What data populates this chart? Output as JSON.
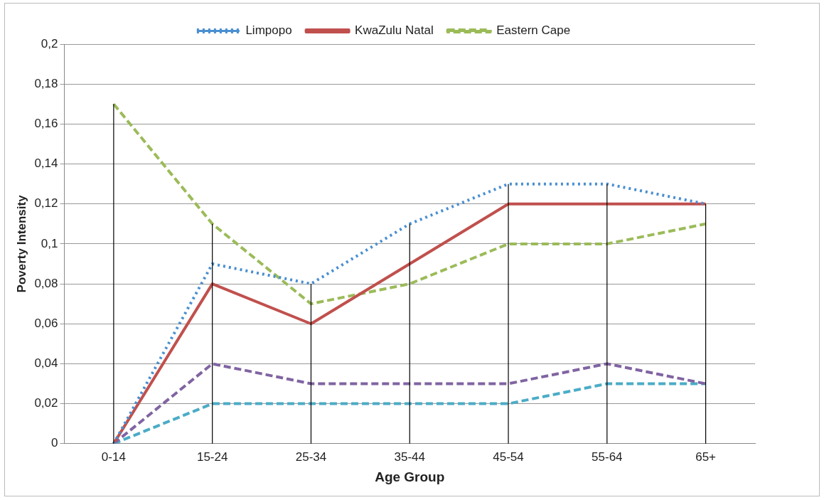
{
  "chart_data": {
    "type": "line",
    "xlabel": "Age Group",
    "ylabel": "Poverty Intensity",
    "categories": [
      "0-14",
      "15-24",
      "25-34",
      "35-44",
      "45-54",
      "55-64",
      "65+"
    ],
    "series": [
      {
        "name": "Limpopo",
        "color": "#4a8fd0",
        "line_style": "dotted",
        "values": [
          0,
          0.09,
          0.08,
          0.11,
          0.13,
          0.13,
          0.12
        ]
      },
      {
        "name": "KwaZulu Natal",
        "color": "#c0504d",
        "line_style": "solid",
        "values": [
          0,
          0.08,
          0.06,
          0.09,
          0.12,
          0.12,
          0.12
        ]
      },
      {
        "name": "Eastern Cape",
        "color": "#9bbb59",
        "line_style": "dashed",
        "values": [
          0.17,
          0.11,
          0.07,
          0.08,
          0.1,
          0.1,
          0.11
        ]
      },
      {
        "color": "#8064a2",
        "line_style": "dashed",
        "values": [
          0,
          0.04,
          0.03,
          0.03,
          0.03,
          0.04,
          0.03
        ]
      },
      {
        "color": "#4bacc6",
        "line_style": "dashed",
        "values": [
          0,
          0.02,
          0.02,
          0.02,
          0.02,
          0.03,
          0.03
        ],
        "errors": [
          [
            0,
            0.17
          ],
          [
            0,
            0.11
          ],
          [
            0,
            0.08
          ],
          [
            0,
            0.11
          ],
          [
            0,
            0.13
          ],
          [
            0,
            0.13
          ],
          [
            0,
            0.12
          ]
        ]
      }
    ],
    "ylim": [
      0,
      0.2
    ],
    "yticks": [
      0,
      {
        "value": 0.02,
        "label": "0,02"
      },
      {
        "value": 0.04,
        "label": "0,04"
      },
      {
        "value": 0.06,
        "label": "0,06"
      },
      {
        "value": 0.08,
        "label": "0,08"
      },
      {
        "value": 0.1,
        "label": "0,1"
      },
      {
        "value": 0.12,
        "label": "0,12"
      },
      {
        "value": 0.14,
        "label": "0,14"
      },
      {
        "value": 0.16,
        "label": "0,16"
      },
      {
        "value": 0.18,
        "label": "0,18"
      },
      {
        "value": 0.2,
        "label": "0,2"
      }
    ],
    "grid": "y",
    "legend": "top",
    "marker": "none"
  }
}
